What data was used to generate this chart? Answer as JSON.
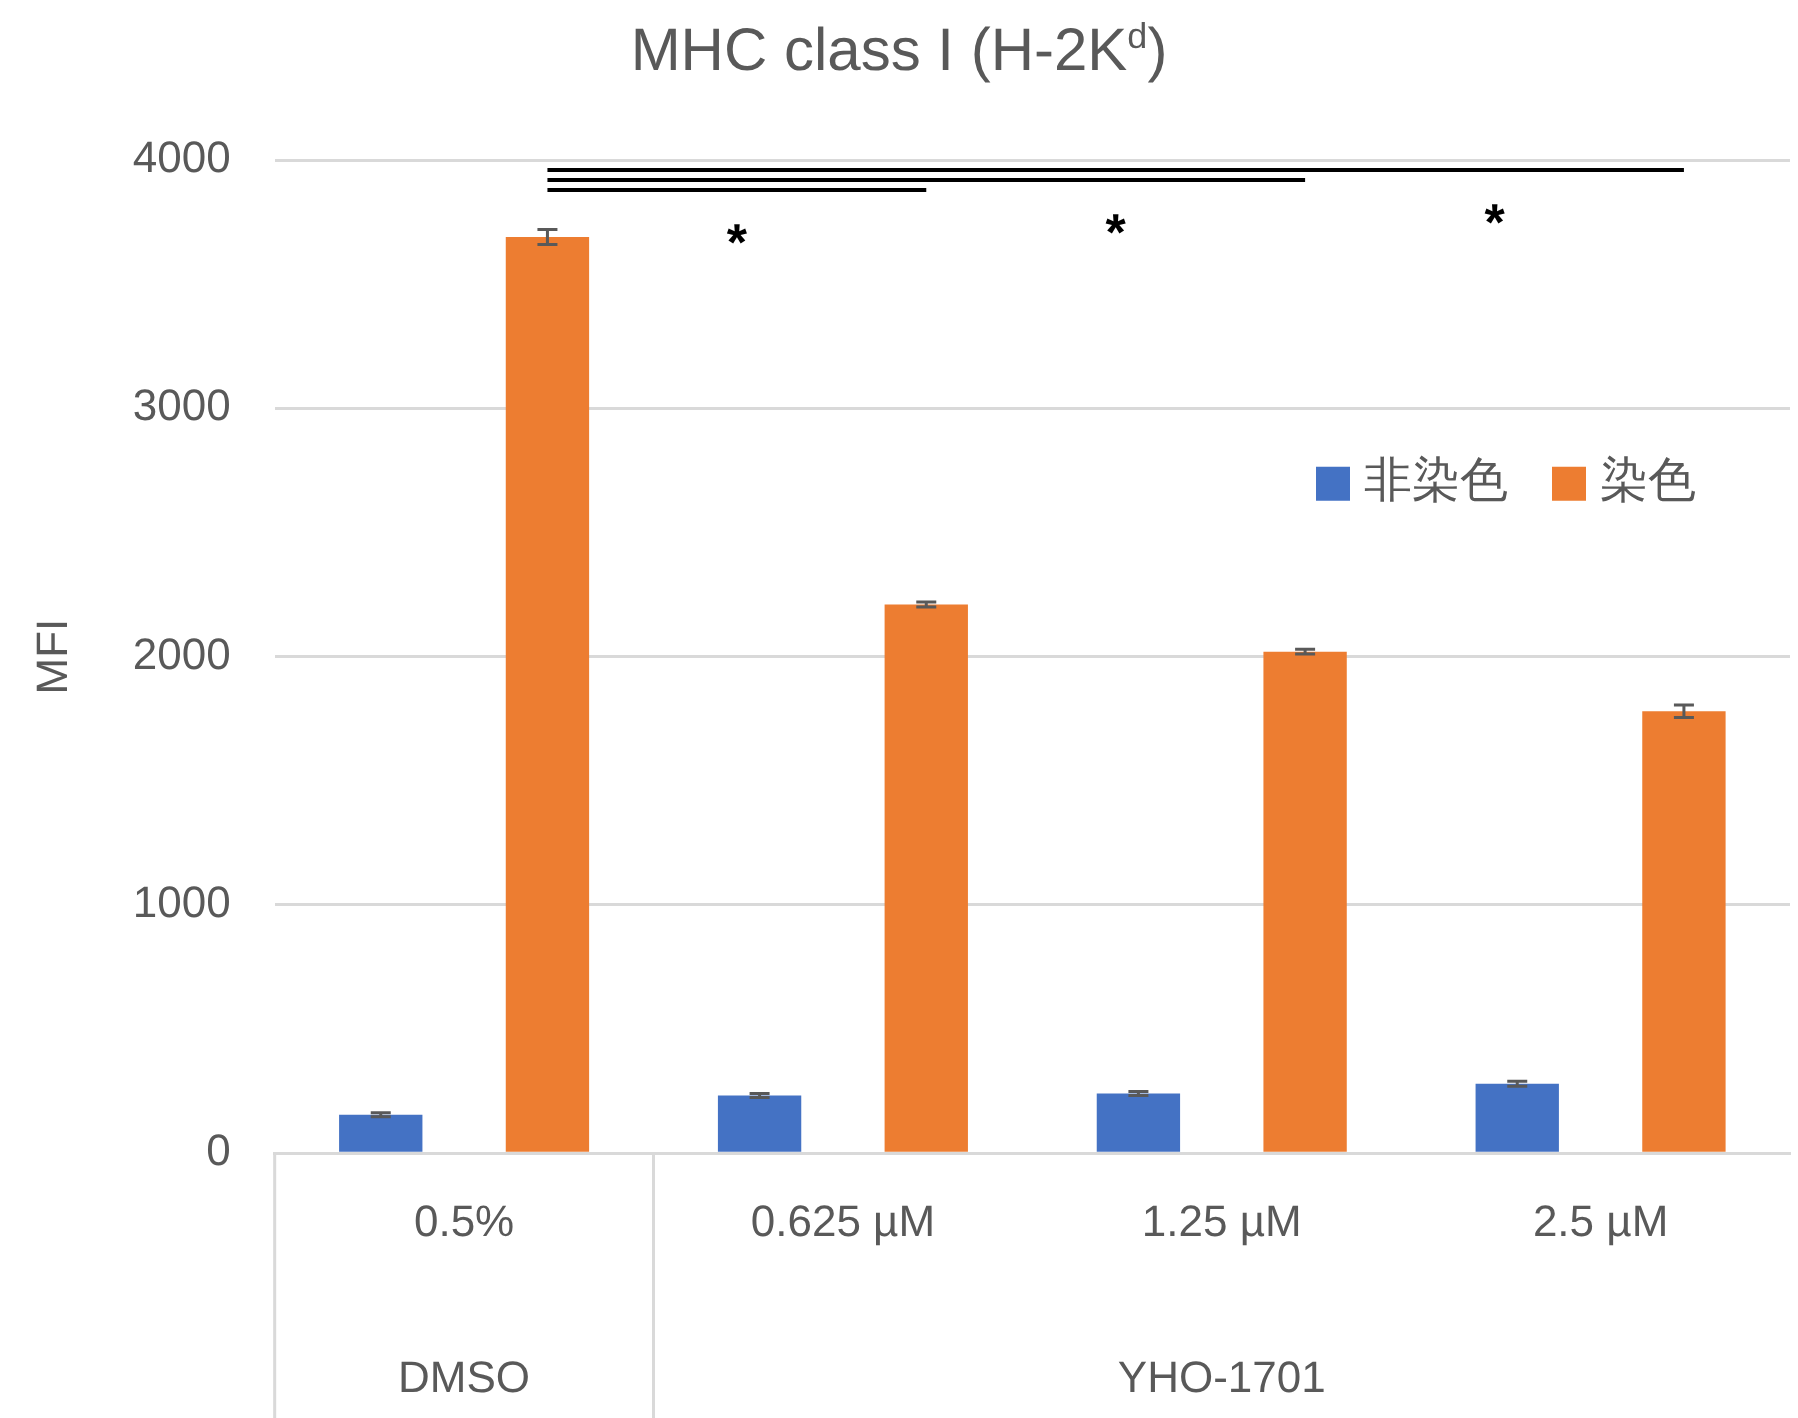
{
  "chart_data": {
    "type": "bar",
    "title": "MHC class I (H-2K$^{d}$)",
    "ylabel": "MFI",
    "categories": [
      "0.5%",
      "0.625 µM",
      "1.25 µM",
      "2.5 µM"
    ],
    "series": [
      {
        "name": "非染色",
        "color": "#4472c4",
        "values": [
          155,
          232,
          240,
          280
        ],
        "errors": [
          8,
          8,
          8,
          10
        ]
      },
      {
        "name": "染色",
        "color": "#ed7d31",
        "values": [
          3690,
          2210,
          2020,
          1780
        ],
        "errors": [
          30,
          10,
          10,
          25
        ]
      }
    ],
    "ylim": [
      0,
      4000
    ],
    "yticks": [
      0,
      1000,
      2000,
      3000,
      4000
    ],
    "grid": "y",
    "legend": "top right",
    "annotations": [
      "*",
      "*",
      "*",
      "DMSO",
      "YHO-1701"
    ]
  }
}
